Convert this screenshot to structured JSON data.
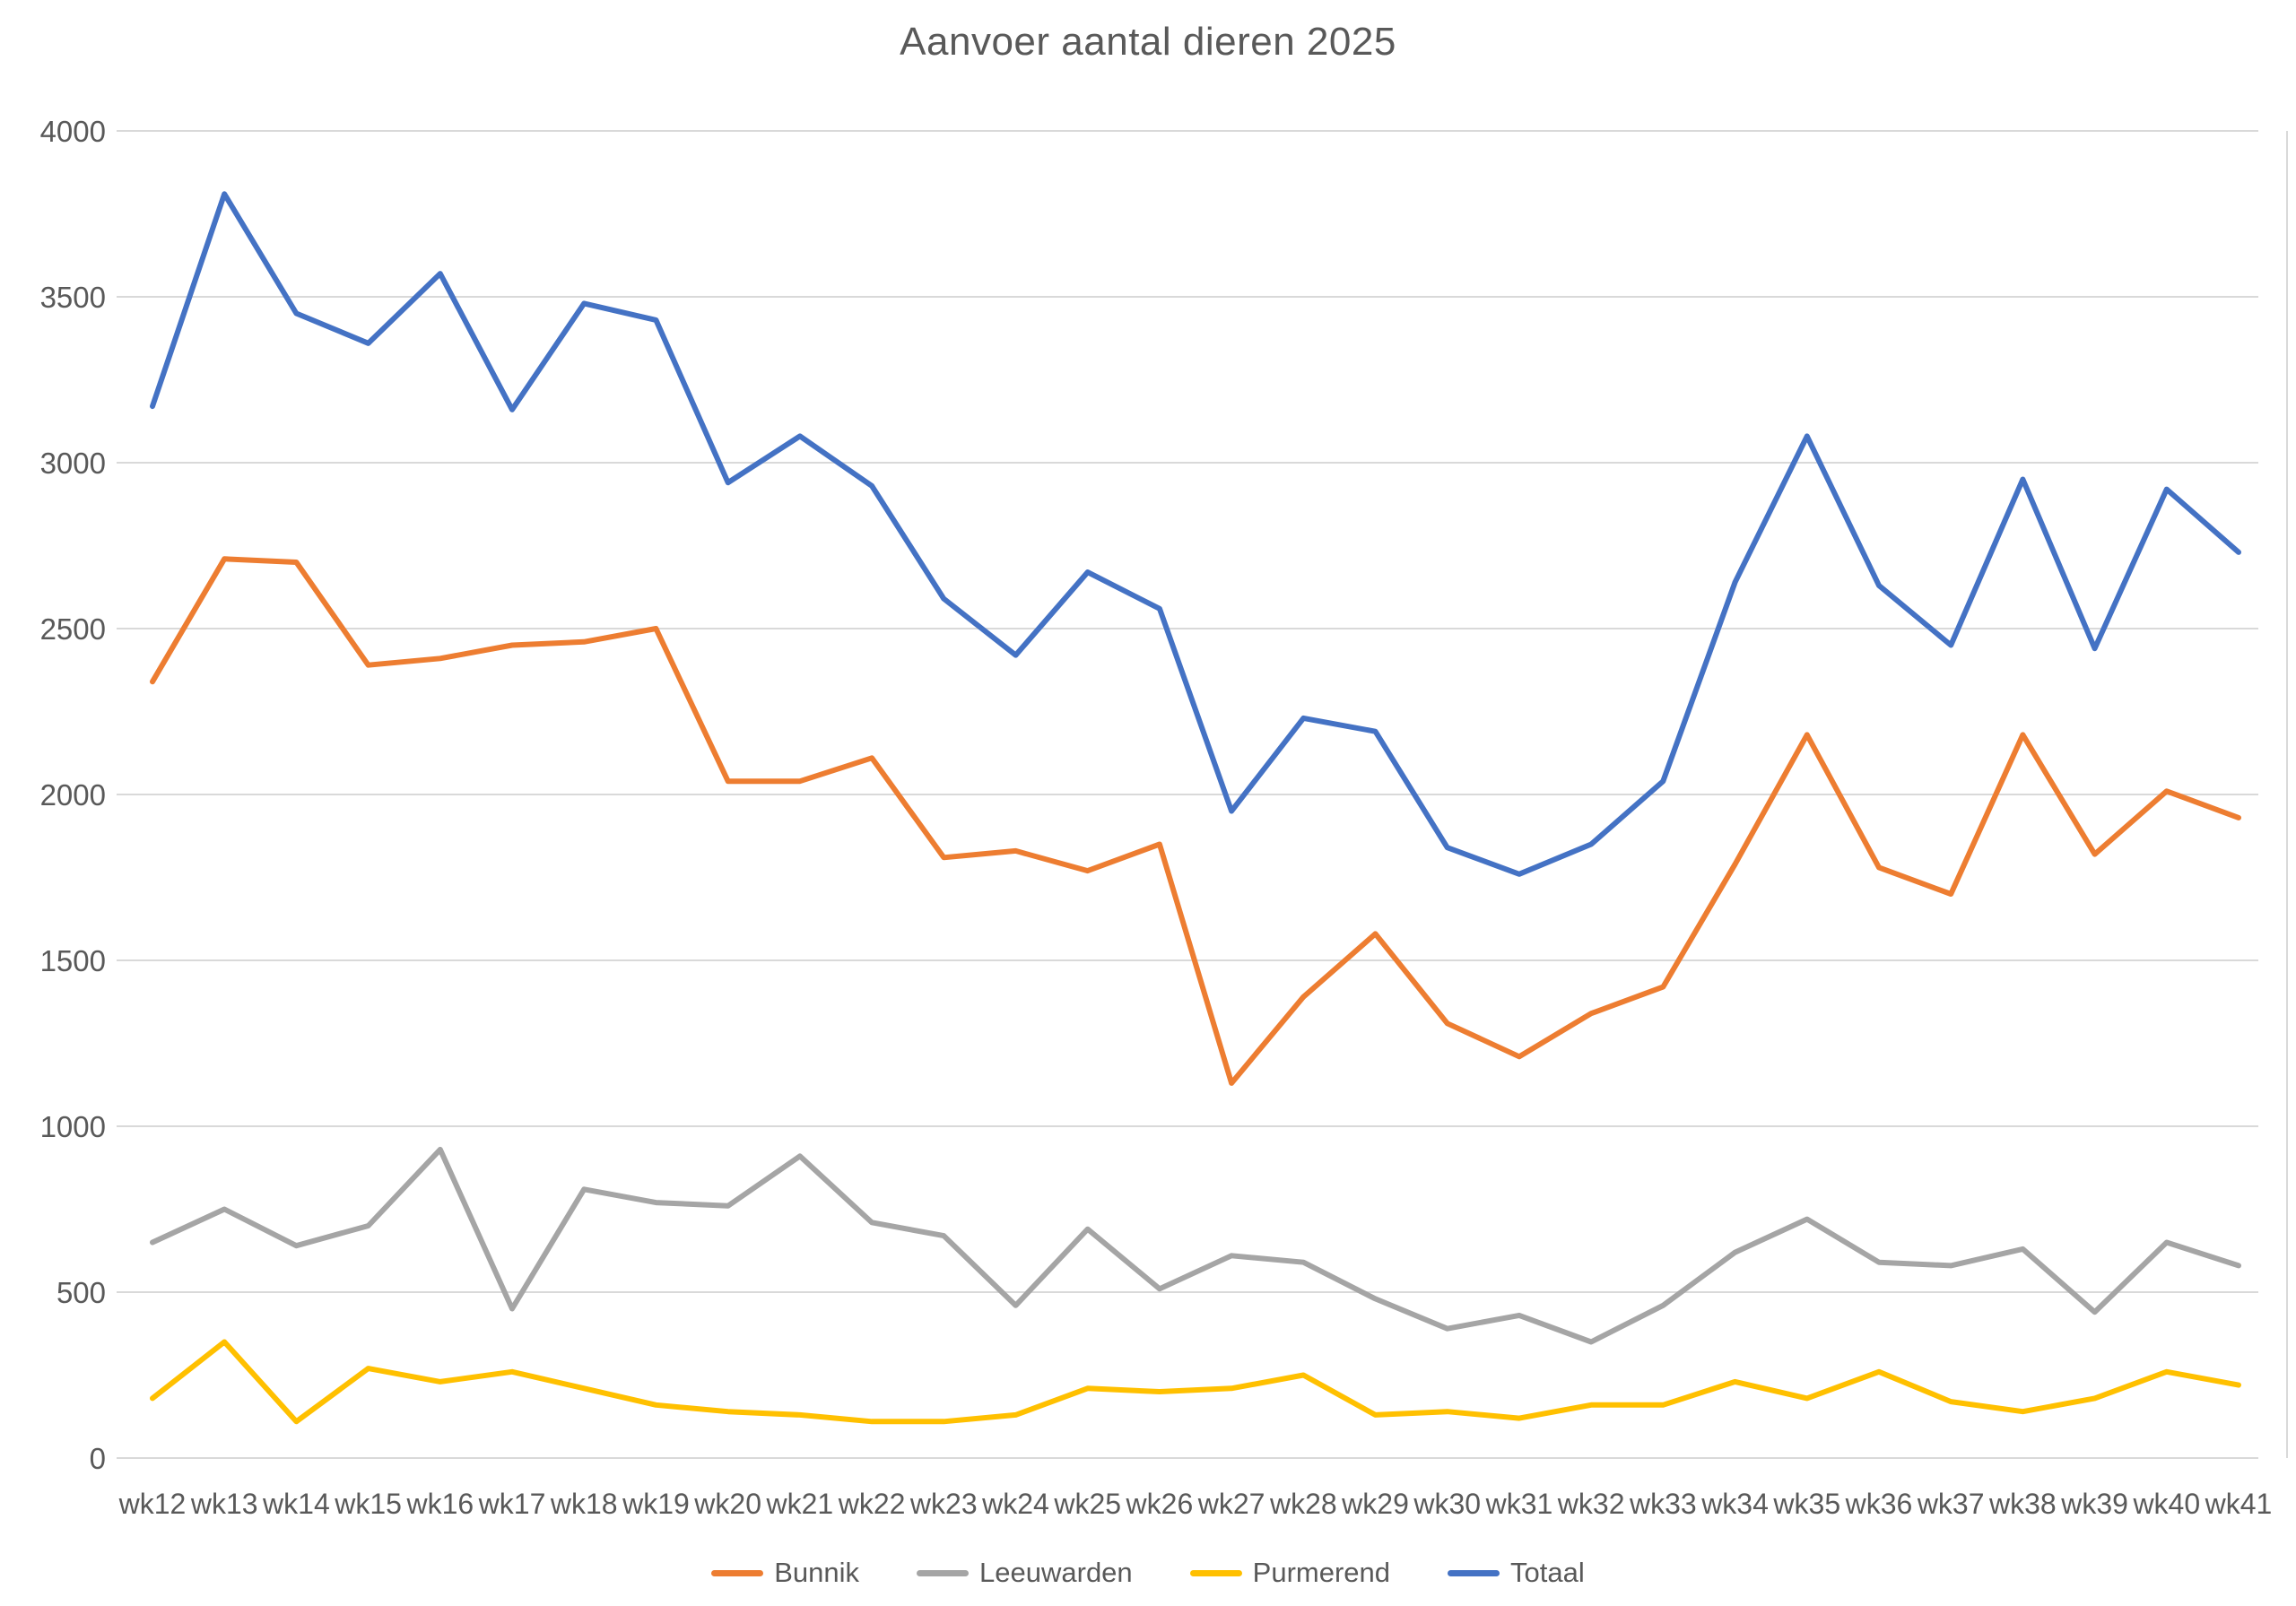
{
  "chart_data": {
    "type": "line",
    "title": "Aanvoer aantal dieren 2025",
    "categories": [
      "wk12",
      "wk13",
      "wk14",
      "wk15",
      "wk16",
      "wk17",
      "wk18",
      "wk19",
      "wk20",
      "wk21",
      "wk22",
      "wk23",
      "wk24",
      "wk25",
      "wk26",
      "wk27",
      "wk28",
      "wk29",
      "wk30",
      "wk31",
      "wk32",
      "wk33",
      "wk34",
      "wk35",
      "wk36",
      "wk37",
      "wk38",
      "wk39",
      "wk40",
      "wk41"
    ],
    "series": [
      {
        "name": "Bunnik",
        "color": "#ED7D31",
        "values": [
          2340,
          2710,
          2700,
          2390,
          2410,
          2450,
          2460,
          2500,
          2040,
          2040,
          2110,
          1810,
          1830,
          1770,
          1850,
          1130,
          1390,
          1580,
          1310,
          1210,
          1340,
          1420,
          1790,
          2180,
          1780,
          1700,
          2180,
          1820,
          2010,
          1930
        ]
      },
      {
        "name": "Leeuwarden",
        "color": "#A5A5A5",
        "values": [
          650,
          750,
          640,
          700,
          930,
          450,
          810,
          770,
          760,
          910,
          710,
          670,
          460,
          690,
          510,
          610,
          590,
          480,
          390,
          430,
          350,
          460,
          620,
          720,
          590,
          580,
          630,
          440,
          650,
          580
        ]
      },
      {
        "name": "Purmerend",
        "color": "#FFC000",
        "values": [
          180,
          350,
          110,
          270,
          230,
          260,
          210,
          160,
          140,
          130,
          110,
          110,
          130,
          210,
          200,
          210,
          250,
          130,
          140,
          120,
          160,
          160,
          230,
          180,
          260,
          170,
          140,
          180,
          260,
          220
        ]
      },
      {
        "name": "Totaal",
        "color": "#4472C4",
        "values": [
          3170,
          3810,
          3450,
          3360,
          3570,
          3160,
          3480,
          3430,
          2940,
          3080,
          2930,
          2590,
          2420,
          2670,
          2560,
          1950,
          2230,
          2190,
          1840,
          1760,
          1850,
          2040,
          2640,
          3080,
          2630,
          2450,
          2950,
          2440,
          2920,
          2730
        ]
      }
    ],
    "ylim": [
      0,
      4000
    ],
    "ytick_step": 500,
    "yticks": [
      "0",
      "500",
      "1000",
      "1500",
      "2000",
      "2500",
      "3000",
      "3500",
      "4000"
    ],
    "grid": true,
    "legend_position": "bottom",
    "gridline_color": "#D9D9D9",
    "axis_label_color": "#595959",
    "title_color": "#595959",
    "background_color": "#ffffff",
    "line_width": 6
  }
}
